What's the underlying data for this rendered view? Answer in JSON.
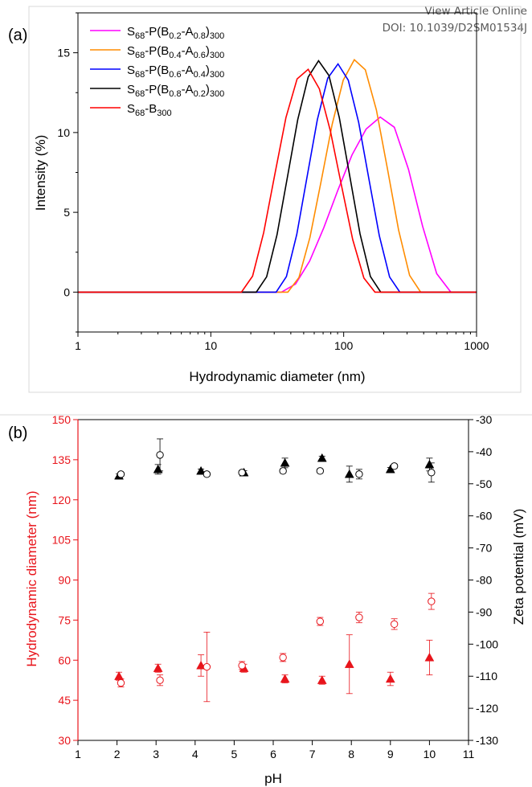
{
  "header": {
    "line1": "View Article Online",
    "line2": "DOI: 10.1039/D2SM01534J"
  },
  "chart_data": [
    {
      "panel": "(a)",
      "type": "line",
      "x_scale": "log",
      "xlabel": "Hydrodynamic diameter (nm)",
      "ylabel": "Intensity (%)",
      "xlim": [
        1,
        1000
      ],
      "ylim": [
        -2.5,
        17.5
      ],
      "x_ticks": [
        1,
        10,
        100,
        1000
      ],
      "x_tick_labels": [
        "1",
        "10",
        "100",
        "1000"
      ],
      "y_ticks": [
        0,
        5,
        10,
        15
      ],
      "y_tick_labels": [
        "0",
        "5",
        "10",
        "15"
      ],
      "legend_position": "top-left",
      "series": [
        {
          "base": "S",
          "sub1": "68",
          "mid": "-P(B",
          "sub2": "0.2",
          "mid2": "-A",
          "sub3": "0.8",
          "tail": ")",
          "sub4": "300",
          "color": "#ff00ff",
          "peak_x": 200,
          "peak_y": 11.0,
          "x_start": 34,
          "x_end": 640,
          "n_pts": 12
        },
        {
          "base": "S",
          "sub1": "68",
          "mid": "-P(B",
          "sub2": "0.4",
          "mid2": "-A",
          "sub3": "0.6",
          "tail": ")",
          "sub4": "300",
          "color": "#ff8c00",
          "peak_x": 125,
          "peak_y": 14.6,
          "x_start": 38,
          "x_end": 380,
          "n_pts": 12
        },
        {
          "base": "S",
          "sub1": "68",
          "mid": "-P(B",
          "sub2": "0.6",
          "mid2": "-A",
          "sub3": "0.4",
          "tail": ")",
          "sub4": "300",
          "color": "#0000ff",
          "peak_x": 90,
          "peak_y": 14.3,
          "x_start": 31,
          "x_end": 265,
          "n_pts": 12
        },
        {
          "base": "S",
          "sub1": "68",
          "mid": "-P(B",
          "sub2": "0.8",
          "mid2": "-A",
          "sub3": "0.2",
          "tail": ")",
          "sub4": "300",
          "color": "#000000",
          "peak_x": 65,
          "peak_y": 14.5,
          "x_start": 22,
          "x_end": 190,
          "n_pts": 12
        },
        {
          "base": "S",
          "sub1": "68",
          "mid": "-B",
          "sub2": "300",
          "mid2": "",
          "sub3": "",
          "tail": "",
          "sub4": "",
          "color": "#ff0000",
          "peak_x": 52,
          "peak_y": 14.0,
          "x_start": 17,
          "x_end": 172,
          "n_pts": 12
        }
      ]
    },
    {
      "panel": "(b)",
      "type": "scatter",
      "xlabel": "pH",
      "ylabel_left": "Hydrodynamic diameter (nm)",
      "ylabel_right": "Zeta potential (mV)",
      "xlim": [
        1,
        11
      ],
      "ylim_left": [
        30,
        150
      ],
      "ylim_right": [
        -130,
        -30
      ],
      "x_ticks": [
        1,
        2,
        3,
        4,
        5,
        6,
        7,
        8,
        9,
        10,
        11
      ],
      "x_tick_labels": [
        "1",
        "2",
        "3",
        "4",
        "5",
        "6",
        "7",
        "8",
        "9",
        "10",
        "11"
      ],
      "y_left_ticks": [
        30,
        45,
        60,
        75,
        90,
        105,
        120,
        135,
        150
      ],
      "y_left_tick_labels": [
        "30",
        "45",
        "60",
        "75",
        "90",
        "105",
        "120",
        "135",
        "150"
      ],
      "y_right_ticks": [
        -130,
        -120,
        -110,
        -100,
        -90,
        -80,
        -70,
        -60,
        -50,
        -40,
        -30
      ],
      "y_right_tick_labels": [
        "-130",
        "-120",
        "-110",
        "-100",
        "-90",
        "-80",
        "-70",
        "-60",
        "-50",
        "-40",
        "-30"
      ],
      "left_color": "#e8141b",
      "series": [
        {
          "kind": "filled-triangle",
          "axis": "left",
          "color": "#e8141b",
          "points": [
            [
              2.05,
              54,
              1.5
            ],
            [
              3.05,
              57,
              1.5
            ],
            [
              4.15,
              58,
              4
            ],
            [
              5.25,
              57,
              1.5
            ],
            [
              6.3,
              53,
              1.5
            ],
            [
              7.25,
              52.5,
              1.5
            ],
            [
              7.95,
              58.5,
              11
            ],
            [
              9.0,
              53,
              2.5
            ],
            [
              10.0,
              61,
              6.5
            ]
          ]
        },
        {
          "kind": "open-circle",
          "axis": "left",
          "color": "#e8141b",
          "points": [
            [
              2.1,
              51.5,
              1.5
            ],
            [
              3.1,
              52.5,
              2
            ],
            [
              4.3,
              57.5,
              13
            ],
            [
              5.2,
              58,
              1.5
            ],
            [
              6.25,
              61,
              1.5
            ],
            [
              7.2,
              74.5,
              1.5
            ],
            [
              8.2,
              76,
              2
            ],
            [
              9.1,
              73.5,
              2
            ],
            [
              10.05,
              82,
              3
            ]
          ]
        },
        {
          "kind": "filled-triangle",
          "axis": "right",
          "color": "#000000",
          "points": [
            [
              2.05,
              -47.5,
              0.6
            ],
            [
              3.05,
              -45.5,
              1.5
            ],
            [
              4.15,
              -46,
              0.6
            ],
            [
              5.25,
              -46.5,
              0.6
            ],
            [
              6.3,
              -43.5,
              1.5
            ],
            [
              7.25,
              -42,
              0.6
            ],
            [
              7.95,
              -47,
              2.5
            ],
            [
              9.0,
              -45.5,
              0.6
            ],
            [
              10.0,
              -44,
              2
            ]
          ]
        },
        {
          "kind": "open-circle",
          "axis": "right",
          "color": "#000000",
          "points": [
            [
              2.1,
              -47,
              0.6
            ],
            [
              3.1,
              -41,
              5
            ],
            [
              4.3,
              -47,
              0.6
            ],
            [
              5.2,
              -46.5,
              0.6
            ],
            [
              6.25,
              -46,
              0.6
            ],
            [
              7.2,
              -46,
              0.6
            ],
            [
              8.2,
              -47,
              1.5
            ],
            [
              9.1,
              -44.5,
              0.6
            ],
            [
              10.05,
              -46.5,
              3
            ]
          ]
        }
      ]
    }
  ]
}
